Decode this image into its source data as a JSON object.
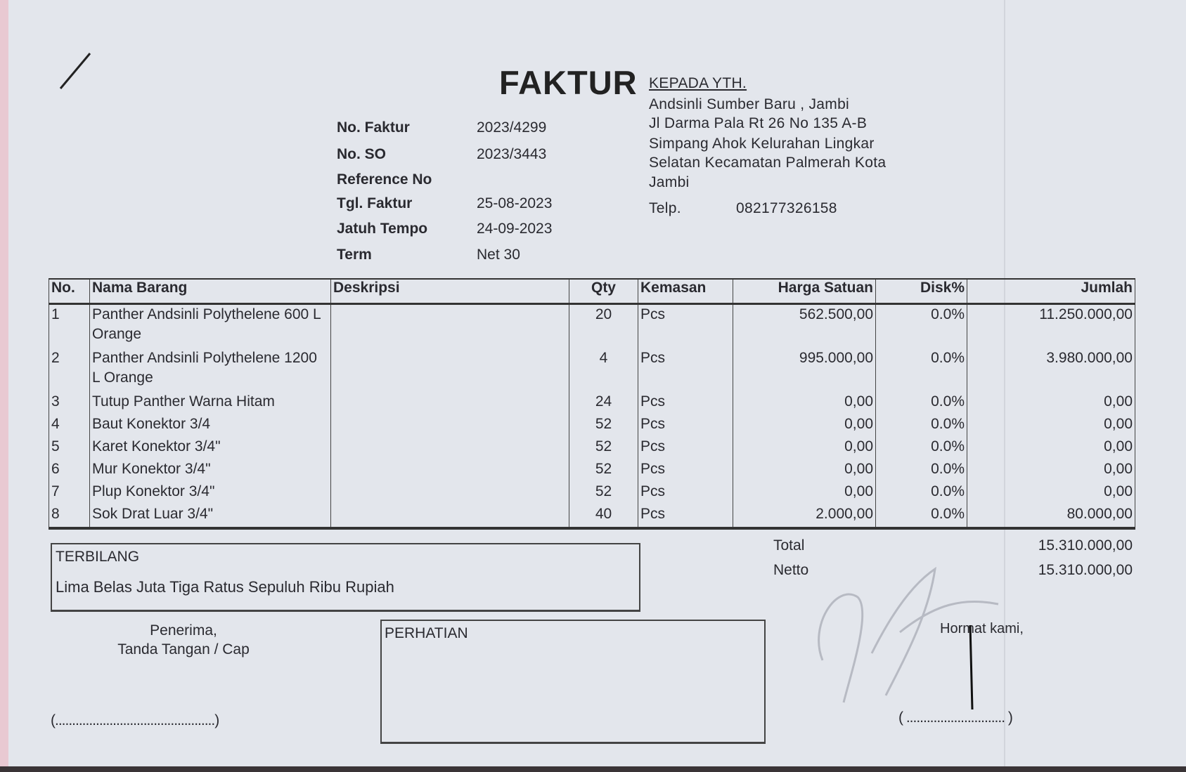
{
  "title": "FAKTUR",
  "invoice_info": [
    {
      "label": "No. Faktur",
      "value": "2023/4299"
    },
    {
      "label": "No. SO",
      "value": "2023/3443"
    },
    {
      "label": "Reference No",
      "value": ""
    },
    {
      "label": "Tgl. Faktur",
      "value": "25-08-2023"
    },
    {
      "label": "Jatuh Tempo",
      "value": "24-09-2023"
    },
    {
      "label": "Term",
      "value": "Net 30"
    }
  ],
  "recipient": {
    "heading": "KEPADA YTH.",
    "lines": [
      "Andsinli Sumber Baru , Jambi",
      "Jl Darma Pala Rt 26 No 135 A-B",
      "Simpang Ahok Kelurahan Lingkar",
      "Selatan Kecamatan Palmerah Kota",
      "Jambi"
    ],
    "phone_label": "Telp.",
    "phone": "082177326158"
  },
  "table": {
    "headers": [
      "No.",
      "Nama Barang",
      "Deskripsi",
      "Qty",
      "Kemasan",
      "Harga Satuan",
      "Disk%",
      "Jumlah"
    ],
    "rows": [
      {
        "no": "1",
        "name": "Panther Andsinli Polythelene 600 L Orange",
        "desc": "",
        "qty": "20",
        "unit": "Pcs",
        "price": "562.500,00",
        "disc": "0.0%",
        "total": "11.250.000,00"
      },
      {
        "no": "2",
        "name": "Panther Andsinli Polythelene 1200 L Orange",
        "desc": "",
        "qty": "4",
        "unit": "Pcs",
        "price": "995.000,00",
        "disc": "0.0%",
        "total": "3.980.000,00"
      },
      {
        "no": "3",
        "name": "Tutup Panther Warna Hitam",
        "desc": "",
        "qty": "24",
        "unit": "Pcs",
        "price": "0,00",
        "disc": "0.0%",
        "total": "0,00"
      },
      {
        "no": "4",
        "name": "Baut Konektor 3/4",
        "desc": "",
        "qty": "52",
        "unit": "Pcs",
        "price": "0,00",
        "disc": "0.0%",
        "total": "0,00"
      },
      {
        "no": "5",
        "name": "Karet Konektor 3/4\"",
        "desc": "",
        "qty": "52",
        "unit": "Pcs",
        "price": "0,00",
        "disc": "0.0%",
        "total": "0,00"
      },
      {
        "no": "6",
        "name": "Mur Konektor 3/4\"",
        "desc": "",
        "qty": "52",
        "unit": "Pcs",
        "price": "0,00",
        "disc": "0.0%",
        "total": "0,00"
      },
      {
        "no": "7",
        "name": "Plup Konektor 3/4\"",
        "desc": "",
        "qty": "52",
        "unit": "Pcs",
        "price": "0,00",
        "disc": "0.0%",
        "total": "0,00"
      },
      {
        "no": "8",
        "name": "Sok Drat Luar 3/4\"",
        "desc": "",
        "qty": "40",
        "unit": "Pcs",
        "price": "2.000,00",
        "disc": "0.0%",
        "total": "80.000,00"
      }
    ]
  },
  "totals": {
    "total_label": "Total",
    "total": "15.310.000,00",
    "netto_label": "Netto",
    "netto": "15.310.000,00"
  },
  "terbilang": {
    "label": "TERBILANG",
    "text": "Lima Belas Juta Tiga Ratus Sepuluh Ribu Rupiah"
  },
  "receiver": {
    "line1": "Penerima,",
    "line2": "Tanda Tangan / Cap",
    "sign_line": "(...............................................)"
  },
  "perhatian": {
    "label": "PERHATIAN"
  },
  "sender": {
    "label": "Hormat kami,",
    "sign_line": "( ............................. )"
  }
}
